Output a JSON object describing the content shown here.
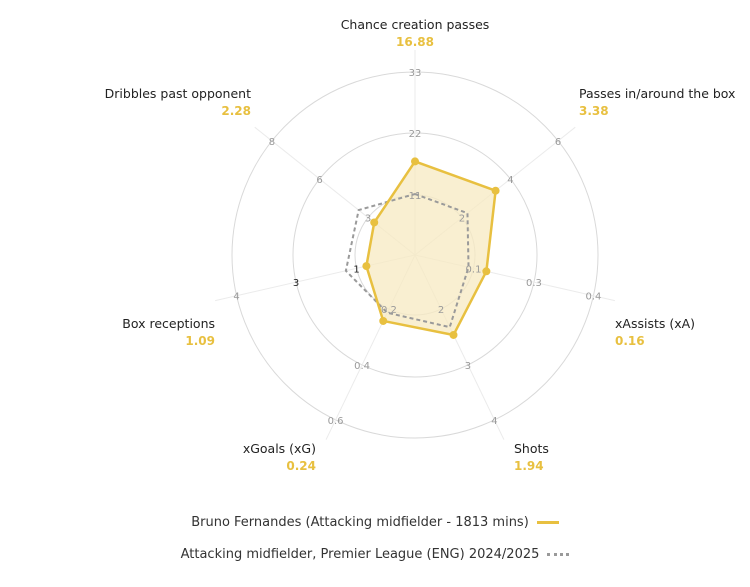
{
  "chart_data": {
    "type": "radar",
    "axes": [
      {
        "label": "Chance creation passes",
        "value_label": "16.88",
        "ticks": [
          "11",
          "22",
          "33"
        ],
        "max": 33,
        "player": 16.88,
        "average": 11
      },
      {
        "label": "Passes in/around the box",
        "value_label": "3.38",
        "ticks": [
          "2",
          "4",
          "6"
        ],
        "max": 6,
        "player": 3.38,
        "average": 2.2
      },
      {
        "label": "xAssists (xA)",
        "value_label": "0.16",
        "ticks": [
          "0.1",
          "0.3",
          "0.4"
        ],
        "max": 0.4,
        "player": 0.16,
        "average": 0.12
      },
      {
        "label": "Shots",
        "value_label": "1.94",
        "ticks": [
          "2",
          "3",
          "4"
        ],
        "max": 4,
        "player": 1.94,
        "average": 1.75
      },
      {
        "label": "xGoals (xG)",
        "value_label": "0.24",
        "ticks": [
          "0.2",
          "0.4",
          "0.6"
        ],
        "max": 0.6,
        "player": 0.24,
        "average": 0.21
      },
      {
        "label": "Box receptions",
        "value_label": "1.09",
        "ticks": [
          "1",
          "3",
          "4"
        ],
        "max": 4,
        "player": 1.09,
        "average": 1.55
      },
      {
        "label": "Dribbles past opponent",
        "value_label": "2.28",
        "ticks": [
          "3",
          "6",
          "8"
        ],
        "max": 8,
        "player": 2.28,
        "average": 3.15
      }
    ],
    "series": [
      {
        "name": "Bruno Fernandes (Attacking midfielder - 1813 mins)",
        "key": "player",
        "color": "#E8C040"
      },
      {
        "name": "Attacking midfielder, Premier League (ENG) 2024/2025",
        "key": "average",
        "color": "#9a9a9a"
      }
    ],
    "colors": {
      "accent": "#E8C040",
      "fill": "#F7E9C2",
      "grid": "#d9d9d9",
      "average": "#9a9a9a"
    }
  },
  "legend": {
    "player": "Bruno Fernandes (Attacking midfielder - 1813 mins)",
    "average": "Attacking midfielder, Premier League (ENG) 2024/2025"
  }
}
